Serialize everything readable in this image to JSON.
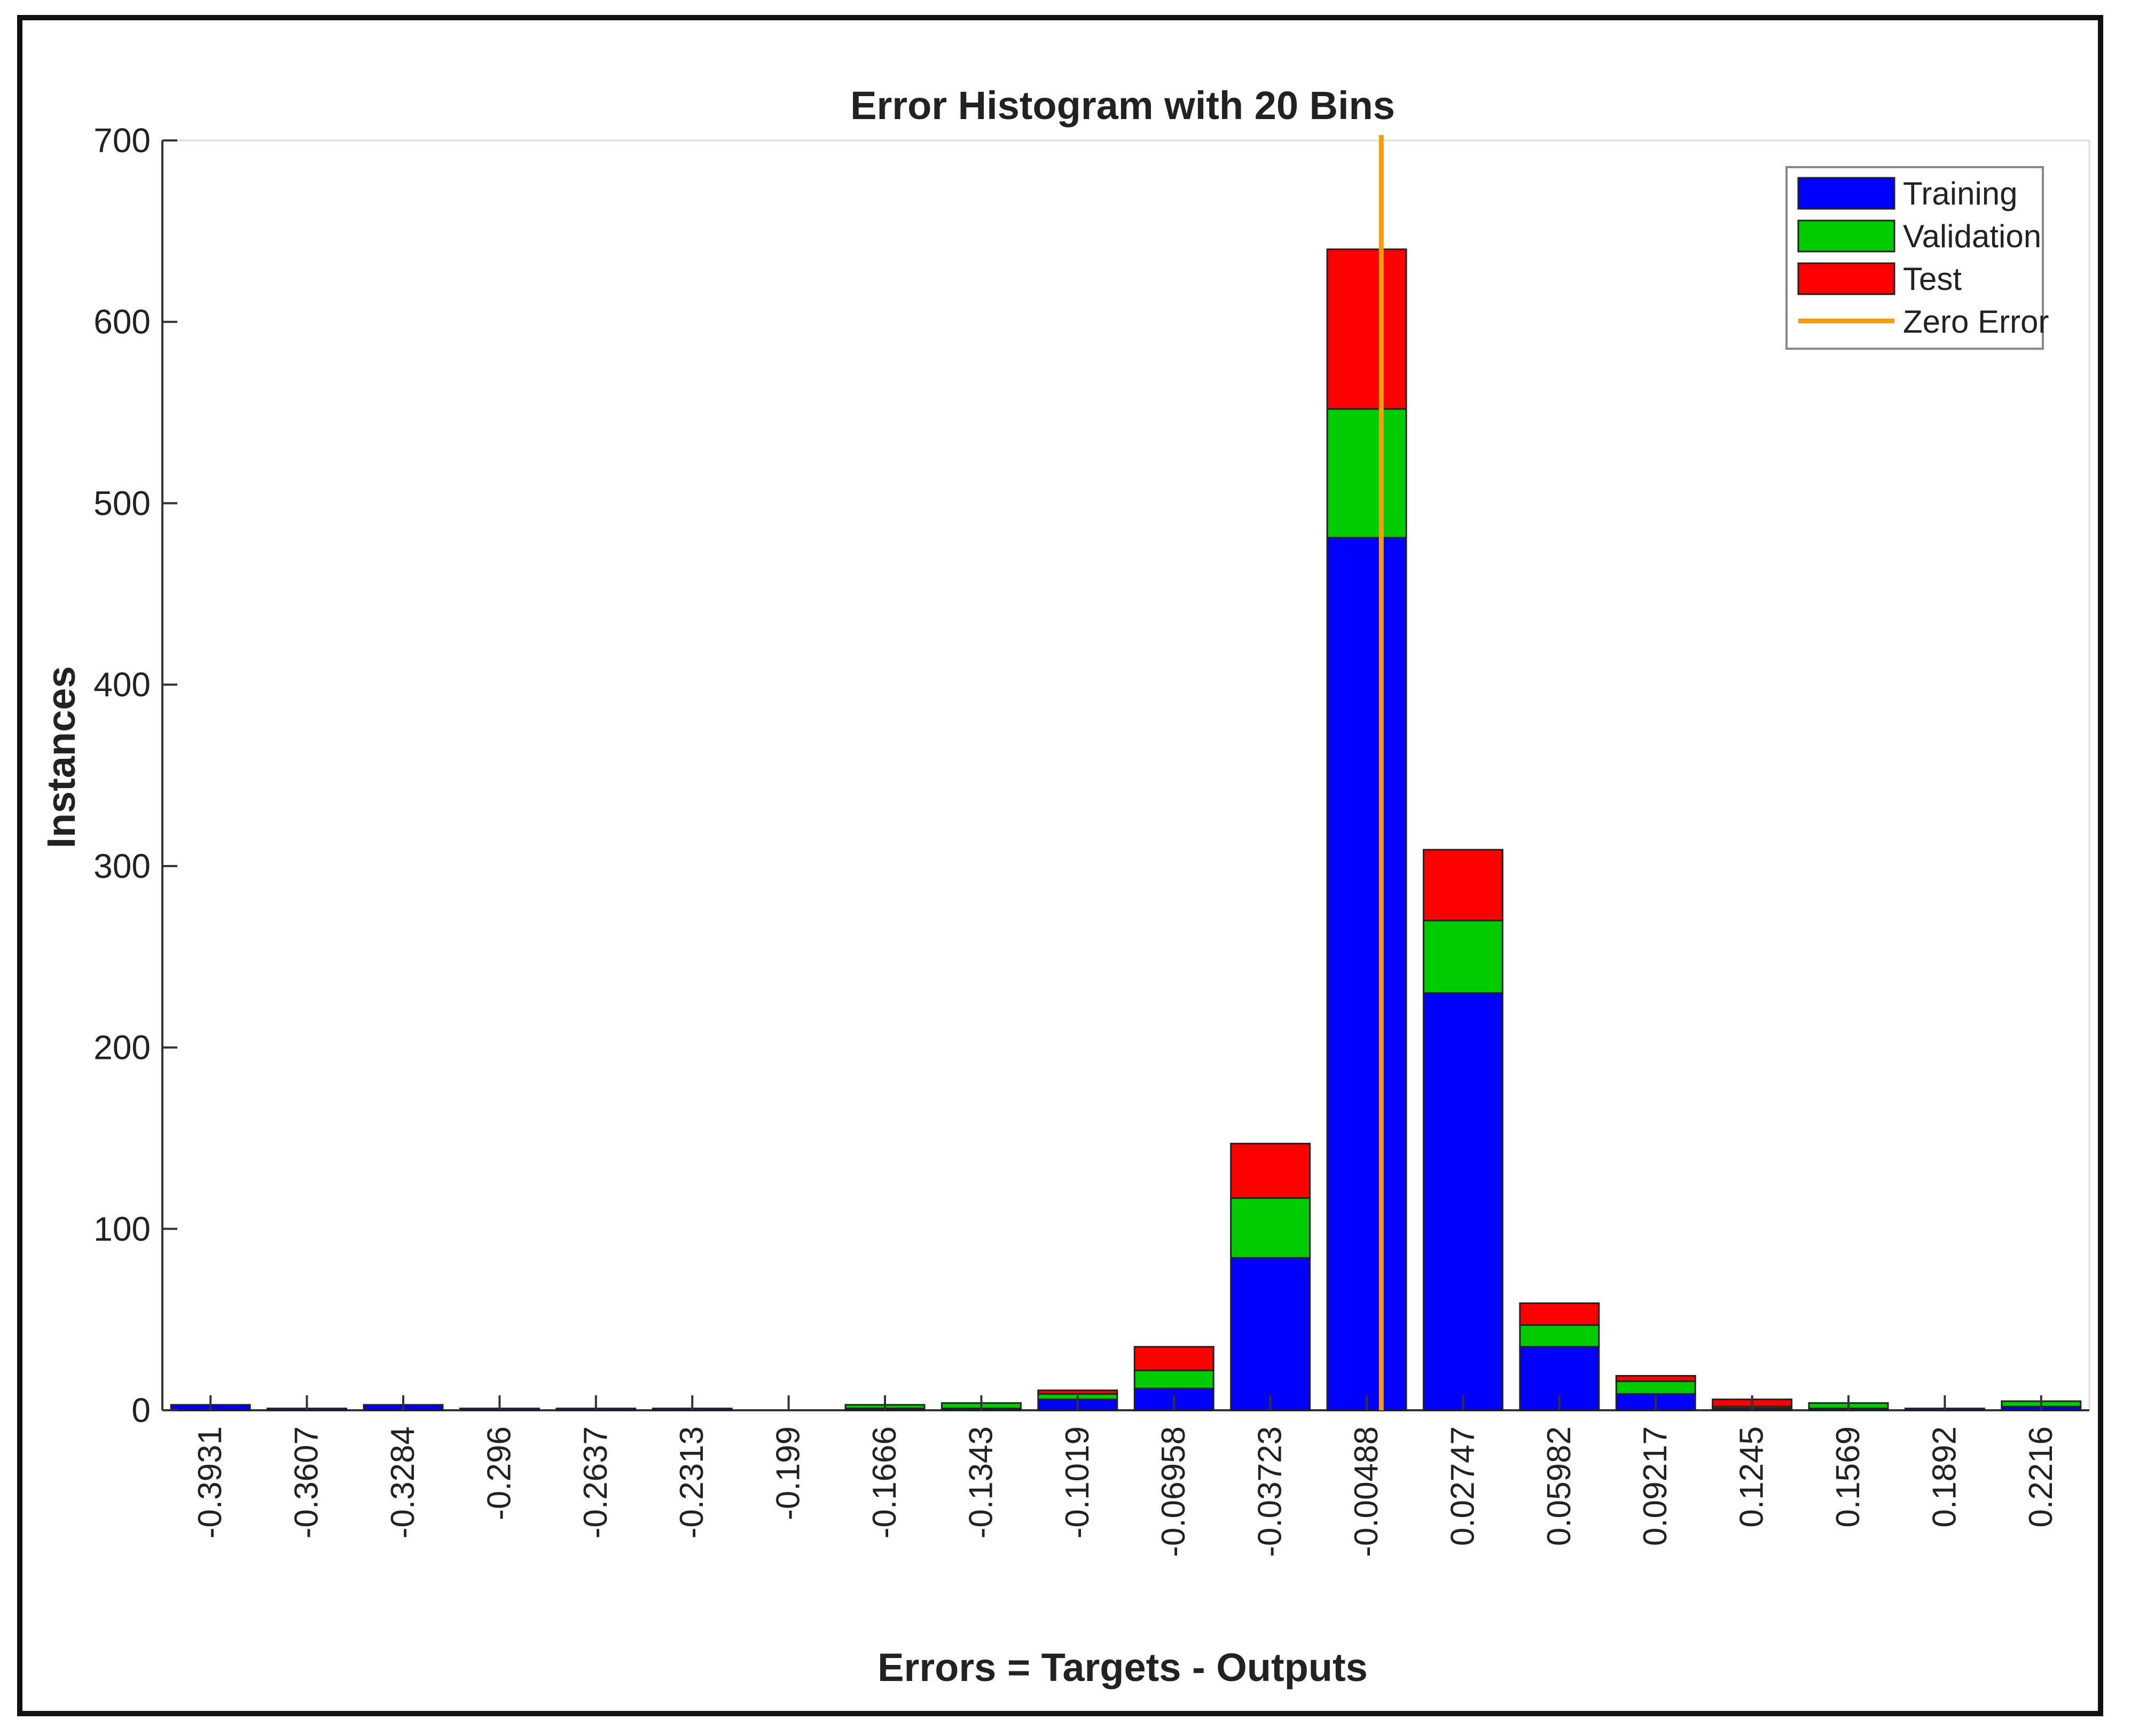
{
  "chart_data": {
    "type": "bar",
    "stacked": true,
    "title": "Error Histogram with 20 Bins",
    "xlabel": "Errors = Targets - Outputs",
    "ylabel": "Instances",
    "ylim": [
      0,
      700
    ],
    "yticks": [
      "0",
      "100",
      "200",
      "300",
      "400",
      "500",
      "600",
      "700"
    ],
    "categories": [
      "-0.3931",
      "-0.3607",
      "-0.3284",
      "-0.296",
      "-0.2637",
      "-0.2313",
      "-0.199",
      "-0.1666",
      "-0.1343",
      "-0.1019",
      "-0.06958",
      "-0.03723",
      "-0.00488",
      "0.02747",
      "0.05982",
      "0.09217",
      "0.1245",
      "0.1569",
      "0.1892",
      "0.2216"
    ],
    "series": [
      {
        "name": "Training",
        "color": "#0000ff",
        "values": [
          3,
          1,
          3,
          1,
          1,
          1,
          0,
          1,
          1,
          6,
          12,
          84,
          481,
          230,
          35,
          9,
          1,
          1,
          1,
          2
        ]
      },
      {
        "name": "Validation",
        "color": "#00cc00",
        "values": [
          0,
          0,
          0,
          0,
          0,
          0,
          0,
          2,
          3,
          3,
          10,
          33,
          71,
          40,
          12,
          7,
          1,
          3,
          0,
          3
        ]
      },
      {
        "name": "Test",
        "color": "#ff0000",
        "values": [
          0,
          0,
          0,
          0,
          0,
          0,
          0,
          0,
          0,
          2,
          13,
          30,
          88,
          39,
          12,
          3,
          4,
          0,
          0,
          0
        ]
      }
    ],
    "reference_line": {
      "name": "Zero Error",
      "x": 0,
      "color": "#f39c12"
    },
    "legend": {
      "position": "top-right",
      "entries": [
        "Training",
        "Validation",
        "Test",
        "Zero Error"
      ]
    },
    "grid": false
  }
}
